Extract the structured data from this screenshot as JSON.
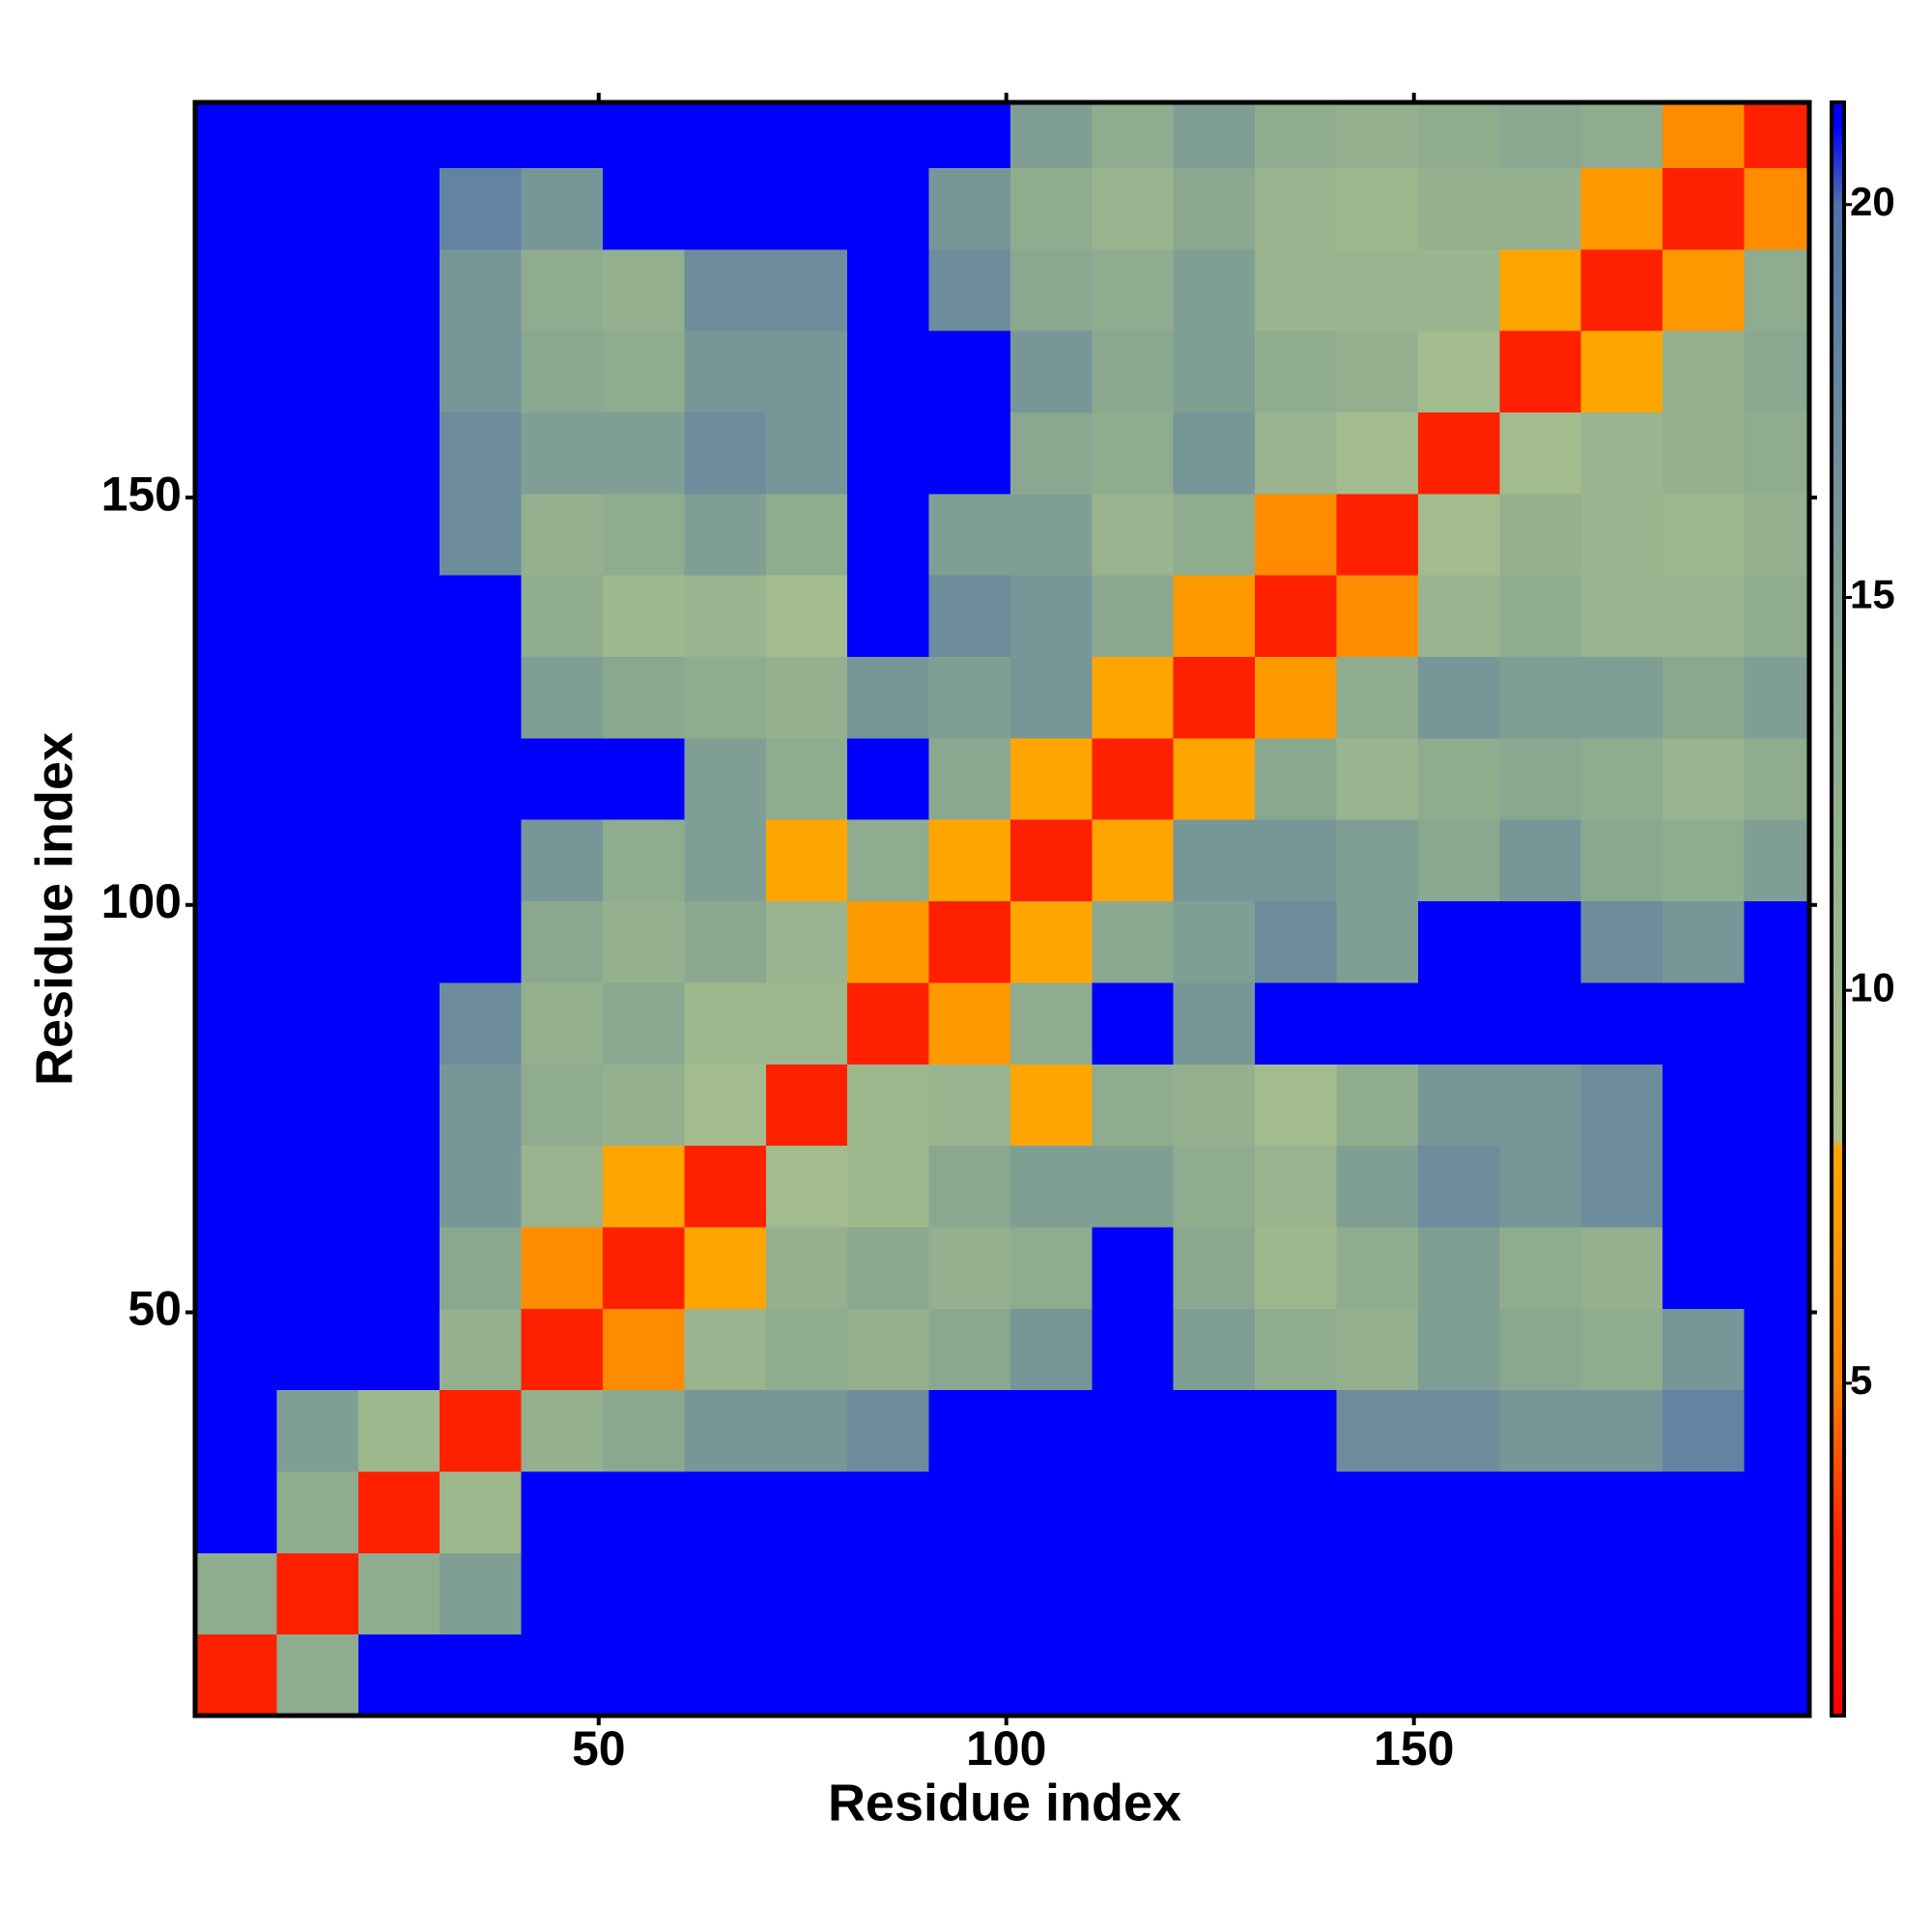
{
  "chart_data": {
    "type": "heatmap",
    "xlabel": "Residue index",
    "ylabel": "Residue index",
    "xlim": [
      0.5,
      198.5
    ],
    "ylim": [
      0.5,
      198.5
    ],
    "xticks": [
      50,
      100,
      150
    ],
    "yticks": [
      50,
      100,
      150
    ],
    "xbins": [
      0.5,
      10.5,
      20.5,
      30.5,
      40.5,
      50.5,
      60.5,
      70.5,
      80.5,
      90.5,
      100.5,
      110.5,
      120.5,
      130.5,
      140.5,
      150.5,
      160.5,
      170.5,
      180.5,
      190.5,
      198.5
    ],
    "ybins": [
      0.5,
      10.5,
      20.5,
      30.5,
      40.5,
      50.5,
      60.5,
      70.5,
      80.5,
      90.5,
      100.5,
      110.5,
      120.5,
      130.5,
      140.5,
      150.5,
      160.5,
      170.5,
      180.5,
      190.5,
      198.5
    ],
    "zlim": [
      0.77,
      21.3
    ],
    "zticks": [
      5,
      10,
      15,
      20
    ],
    "colorscale": [
      [
        0.77,
        "#ff0000"
      ],
      [
        3,
        "#ff2000"
      ],
      [
        5,
        "#ff8000"
      ],
      [
        8,
        "#ffa500"
      ],
      [
        8.1,
        "#a8c08c"
      ],
      [
        14,
        "#8aa890"
      ],
      [
        20,
        "#4f72a8"
      ],
      [
        21,
        "#0000ff"
      ],
      [
        21.3,
        "#0000ff"
      ]
    ],
    "z": [
      [
        3,
        13,
        25,
        25,
        25,
        25,
        25,
        25,
        25,
        25,
        25,
        25,
        25,
        25,
        25,
        25,
        25,
        25,
        25,
        25
      ],
      [
        13,
        3,
        13,
        15,
        25,
        25,
        25,
        25,
        25,
        25,
        25,
        25,
        25,
        25,
        25,
        25,
        25,
        25,
        25,
        25
      ],
      [
        25,
        13,
        3,
        10,
        25,
        25,
        25,
        25,
        25,
        25,
        25,
        25,
        25,
        25,
        25,
        25,
        25,
        25,
        25,
        25
      ],
      [
        25,
        15,
        10,
        3,
        12,
        14,
        16,
        16,
        17,
        25,
        25,
        25,
        25,
        25,
        17,
        17,
        16,
        16,
        18,
        25
      ],
      [
        25,
        25,
        25,
        12,
        3,
        6,
        11,
        13,
        12,
        14,
        16,
        25,
        15,
        13,
        12,
        15,
        14,
        13,
        16,
        25
      ],
      [
        25,
        25,
        25,
        14,
        6,
        3,
        8,
        12,
        14,
        12,
        13,
        25,
        14,
        10,
        13,
        15,
        13,
        12,
        25,
        25
      ],
      [
        25,
        25,
        25,
        16,
        11,
        8,
        3,
        9,
        10,
        14,
        15,
        15,
        13,
        11,
        15,
        17,
        16,
        17,
        25,
        25
      ],
      [
        25,
        25,
        25,
        16,
        13,
        12,
        9,
        3,
        10,
        11,
        8,
        13,
        12,
        9,
        13,
        16,
        16,
        17,
        25,
        25
      ],
      [
        25,
        25,
        25,
        17,
        12,
        14,
        10,
        10,
        3,
        7,
        13,
        25,
        16,
        25,
        25,
        25,
        25,
        25,
        25,
        25
      ],
      [
        25,
        25,
        25,
        25,
        14,
        12,
        14,
        11,
        7,
        3,
        8,
        14,
        15,
        17,
        15,
        25,
        25,
        17,
        16,
        25
      ],
      [
        25,
        25,
        25,
        25,
        16,
        13,
        15,
        8,
        13,
        8,
        3,
        8,
        16,
        16,
        15,
        14,
        16,
        14,
        13,
        15
      ],
      [
        25,
        25,
        25,
        25,
        25,
        25,
        15,
        13,
        25,
        14,
        8,
        3,
        8,
        14,
        11,
        13,
        14,
        13,
        11,
        13
      ],
      [
        25,
        25,
        25,
        25,
        15,
        14,
        13,
        12,
        16,
        15,
        16,
        8,
        3,
        7,
        13,
        16,
        15,
        15,
        14,
        15
      ],
      [
        25,
        25,
        25,
        25,
        13,
        10,
        11,
        9,
        25,
        17,
        16,
        14,
        7,
        3,
        6,
        11,
        13,
        11,
        11,
        13
      ],
      [
        25,
        25,
        25,
        17,
        12,
        13,
        15,
        13,
        25,
        15,
        15,
        11,
        13,
        6,
        3,
        9,
        12,
        11,
        10,
        12
      ],
      [
        25,
        25,
        25,
        17,
        15,
        15,
        17,
        16,
        25,
        25,
        14,
        13,
        16,
        11,
        9,
        3,
        9,
        11,
        12,
        13
      ],
      [
        25,
        25,
        25,
        16,
        14,
        13,
        16,
        16,
        25,
        25,
        16,
        14,
        15,
        13,
        12,
        9,
        3,
        8,
        12,
        14
      ],
      [
        25,
        25,
        25,
        16,
        13,
        12,
        17,
        17,
        25,
        17,
        14,
        13,
        15,
        11,
        11,
        11,
        8,
        3,
        7,
        13
      ],
      [
        25,
        25,
        25,
        18,
        16,
        25,
        25,
        25,
        25,
        16,
        13,
        11,
        14,
        11,
        10,
        12,
        12,
        7,
        3,
        6
      ],
      [
        25,
        25,
        25,
        25,
        25,
        25,
        25,
        25,
        25,
        25,
        15,
        13,
        15,
        13,
        12,
        13,
        14,
        13,
        6,
        3
      ]
    ]
  }
}
